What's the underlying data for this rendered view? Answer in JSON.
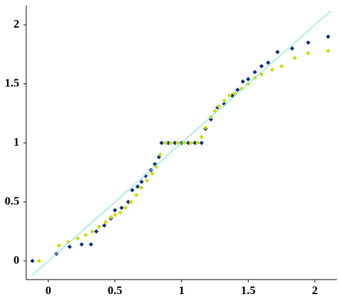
{
  "chart_data": {
    "type": "scatter",
    "xlim": [
      -0.166,
      2.166
    ],
    "ylim": [
      -0.158,
      2.164
    ],
    "xticks": [
      0,
      0.5,
      1,
      1.5,
      2
    ],
    "yticks": [
      0,
      0.5,
      1,
      1.5,
      2
    ],
    "series": [
      {
        "color": "#0b2c7e",
        "x": [
          -0.12,
          0.06,
          0.16,
          0.25,
          0.32,
          0.36,
          0.42,
          0.47,
          0.5,
          0.55,
          0.6,
          0.63,
          0.67,
          0.7,
          0.73,
          0.77,
          0.8,
          0.83,
          0.85,
          0.9,
          0.95,
          1.0,
          1.05,
          1.1,
          1.15,
          1.18,
          1.22,
          1.27,
          1.32,
          1.38,
          1.42,
          1.46,
          1.5,
          1.55,
          1.6,
          1.65,
          1.72,
          1.83,
          1.95,
          2.1
        ],
        "values": [
          0,
          0.06,
          0.12,
          0.14,
          0.14,
          0.25,
          0.3,
          0.36,
          0.43,
          0.45,
          0.5,
          0.6,
          0.63,
          0.67,
          0.72,
          0.77,
          0.82,
          0.88,
          1.0,
          1.0,
          1.0,
          1.0,
          1.0,
          1.0,
          1.0,
          1.12,
          1.2,
          1.3,
          1.33,
          1.4,
          1.45,
          1.52,
          1.54,
          1.6,
          1.65,
          1.68,
          1.77,
          1.8,
          1.85,
          1.9
        ]
      },
      {
        "color": "#c6e000",
        "x": [
          -0.07,
          0.08,
          0.15,
          0.22,
          0.28,
          0.33,
          0.38,
          0.43,
          0.47,
          0.5,
          0.54,
          0.58,
          0.62,
          0.66,
          0.7,
          0.74,
          0.78,
          0.81,
          0.84,
          0.88,
          0.92,
          0.97,
          1.02,
          1.07,
          1.12,
          1.15,
          1.18,
          1.22,
          1.25,
          1.28,
          1.32,
          1.36,
          1.4,
          1.45,
          1.5,
          1.55,
          1.6,
          1.68,
          1.75,
          1.85,
          1.95,
          2.1
        ],
        "values": [
          0,
          0.13,
          0.16,
          0.19,
          0.22,
          0.25,
          0.29,
          0.33,
          0.37,
          0.39,
          0.41,
          0.45,
          0.5,
          0.56,
          0.62,
          0.68,
          0.74,
          0.8,
          0.9,
          1.0,
          1.0,
          1.0,
          1.0,
          1.0,
          1.0,
          1.05,
          1.13,
          1.22,
          1.27,
          1.31,
          1.36,
          1.4,
          1.42,
          1.46,
          1.5,
          1.55,
          1.58,
          1.62,
          1.65,
          1.72,
          1.76,
          1.78
        ]
      },
      {
        "type": "line",
        "color": "#7fe8d6",
        "x": [
          -0.12,
          2.12
        ],
        "values": [
          -0.12,
          2.12
        ]
      }
    ]
  }
}
